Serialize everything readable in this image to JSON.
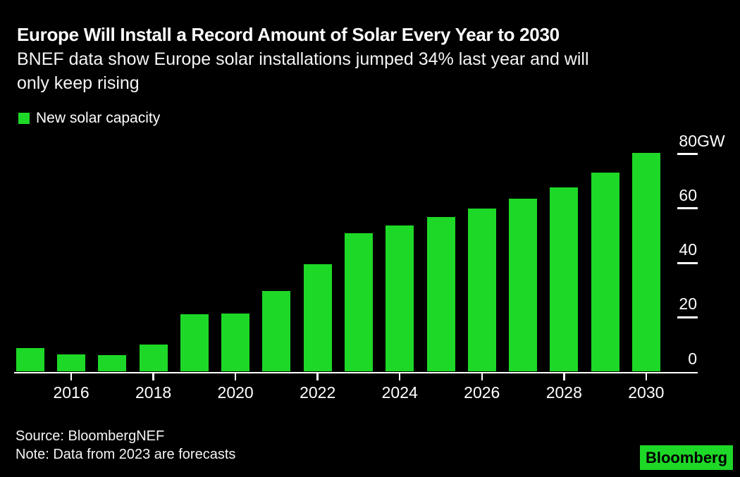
{
  "header": {
    "title": "Europe Will Install a Record Amount of Solar Every Year to 2030",
    "subtitle_lines": [
      "BNEF data show Europe solar installations jumped 34% last year and will",
      "only keep rising"
    ]
  },
  "legend": {
    "label": "New solar capacity"
  },
  "chart_data": {
    "type": "bar",
    "title": "Europe Will Install a Record Amount of Solar Every Year to 2030",
    "series_name": "New solar capacity",
    "unit": "GW",
    "categories": [
      2015,
      2016,
      2017,
      2018,
      2019,
      2020,
      2021,
      2022,
      2023,
      2024,
      2025,
      2026,
      2027,
      2028,
      2029,
      2030
    ],
    "values": [
      8.7,
      6.4,
      6.2,
      10.0,
      21.2,
      21.5,
      29.6,
      39.6,
      51.0,
      53.8,
      56.8,
      59.9,
      63.5,
      67.8,
      73.2,
      80.5
    ],
    "ylim": [
      0,
      84
    ],
    "yticks": [
      {
        "value": 0,
        "label": "0"
      },
      {
        "value": 20,
        "label": "20"
      },
      {
        "value": 40,
        "label": "40"
      },
      {
        "value": 60,
        "label": "60"
      },
      {
        "value": 80,
        "label": "80",
        "unit": "GW"
      }
    ],
    "xticks": [
      2016,
      2018,
      2020,
      2022,
      2024,
      2026,
      2028,
      2030
    ],
    "bar_color": "#1ED827",
    "axis_side": "right",
    "grid": false,
    "legend_position": "top-left"
  },
  "footer": {
    "source": "Source: BloombergNEF",
    "note": "Note: Data from 2023 are forecasts",
    "logo_text": "Bloomberg"
  },
  "colors": {
    "background": "#000000",
    "text": "#ffffff",
    "accent_green": "#1ED827"
  }
}
